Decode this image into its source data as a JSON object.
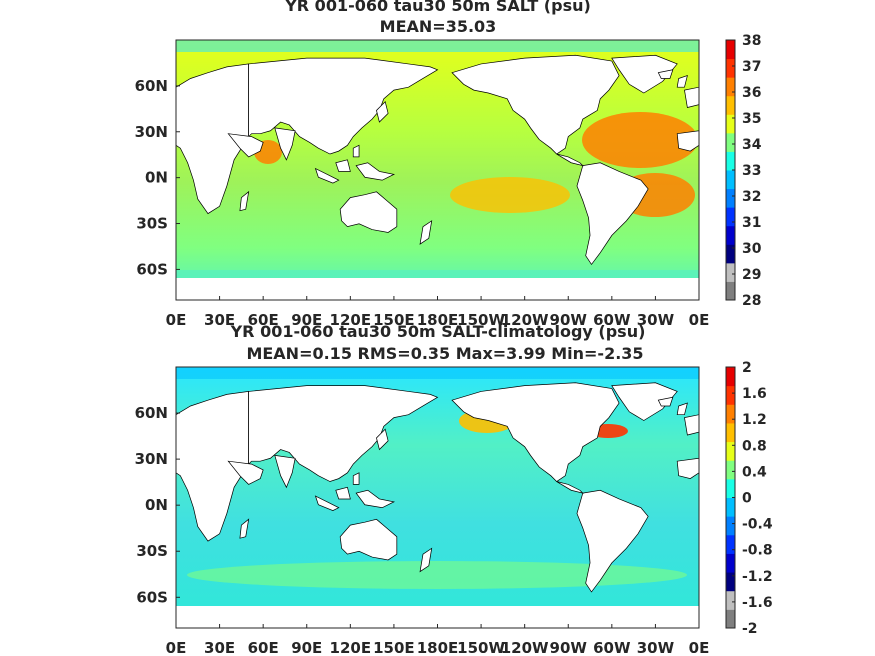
{
  "chart_data": [
    {
      "type": "heatmap",
      "title": "YR 001-060 tau30 50m SALT (psu)",
      "subtitle": "MEAN=35.03",
      "x_tick_labels": [
        "0E",
        "30E",
        "60E",
        "90E",
        "120E",
        "150E",
        "180E",
        "150W",
        "120W",
        "90W",
        "60W",
        "30W",
        "0E"
      ],
      "y_tick_labels": [
        "60N",
        "30N",
        "0N",
        "30S",
        "60S"
      ],
      "y_tick_values": [
        60,
        30,
        0,
        -30,
        -60
      ],
      "xlim": [
        0,
        360
      ],
      "ylim": [
        -80,
        90
      ],
      "colorbar": {
        "tick_labels": [
          "38",
          "37",
          "36",
          "35",
          "34",
          "33",
          "32",
          "31",
          "30",
          "29",
          "28"
        ],
        "range": [
          28,
          38
        ]
      },
      "colormap": [
        "#7f7f7f",
        "#bfbfbf",
        "#00007f",
        "#0000cc",
        "#0033ff",
        "#0080ff",
        "#00bfff",
        "#19ffe6",
        "#80ff80",
        "#e6ff19",
        "#ffbf00",
        "#ff8000",
        "#ff3300",
        "#e60000"
      ]
    },
    {
      "type": "heatmap",
      "title": "YR 001-060 tau30 50m SALT-climatology (psu)",
      "subtitle": "MEAN=0.15   RMS=0.35   Max=3.99   Min=-2.35",
      "x_tick_labels": [
        "0E",
        "30E",
        "60E",
        "90E",
        "120E",
        "150E",
        "180E",
        "150W",
        "120W",
        "90W",
        "60W",
        "30W",
        "0E"
      ],
      "y_tick_labels": [
        "60N",
        "30N",
        "0N",
        "30S",
        "60S"
      ],
      "y_tick_values": [
        60,
        30,
        0,
        -30,
        -60
      ],
      "xlim": [
        0,
        360
      ],
      "ylim": [
        -80,
        90
      ],
      "colorbar": {
        "tick_labels": [
          "2",
          "1.6",
          "1.2",
          "0.8",
          "0.4",
          "0",
          "-0.4",
          "-0.8",
          "-1.2",
          "-1.6",
          "-2"
        ],
        "range": [
          -2,
          2
        ]
      },
      "colormap": [
        "#7f7f7f",
        "#bfbfbf",
        "#00007f",
        "#0000cc",
        "#0033ff",
        "#0080ff",
        "#00bfff",
        "#19ffe6",
        "#80ff80",
        "#e6ff19",
        "#ffbf00",
        "#ff8000",
        "#ff3300",
        "#e60000"
      ]
    }
  ],
  "colors": {
    "ocean_top": "#9ef25a",
    "ocean_bottom": "#52f0c6",
    "land": "#ffffff",
    "coast": "#000000",
    "text": "#262626"
  }
}
